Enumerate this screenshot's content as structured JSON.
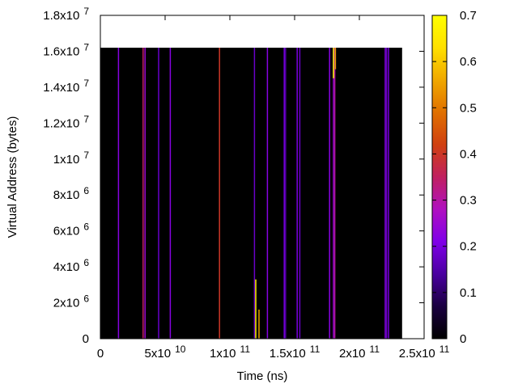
{
  "chart_data": {
    "type": "heatmap",
    "title": "",
    "xlabel": "Time (ns)",
    "ylabel": "Virtual Address (bytes)",
    "xlim": [
      0,
      250000000000.0
    ],
    "ylim": [
      0,
      18000000.0
    ],
    "x_ticks": [
      {
        "value": 0,
        "mant": "0",
        "exp": ""
      },
      {
        "value": 50000000000.0,
        "mant": "5x10",
        "exp": "10"
      },
      {
        "value": 100000000000.0,
        "mant": "1x10",
        "exp": "11"
      },
      {
        "value": 150000000000.0,
        "mant": "1.5x10",
        "exp": "11"
      },
      {
        "value": 200000000000.0,
        "mant": "2x10",
        "exp": "11"
      },
      {
        "value": 250000000000.0,
        "mant": "2.5x10",
        "exp": "11"
      }
    ],
    "y_ticks": [
      {
        "value": 0,
        "mant": "0",
        "exp": ""
      },
      {
        "value": 2000000.0,
        "mant": "2x10",
        "exp": "6"
      },
      {
        "value": 4000000.0,
        "mant": "4x10",
        "exp": "6"
      },
      {
        "value": 6000000.0,
        "mant": "6x10",
        "exp": "6"
      },
      {
        "value": 8000000.0,
        "mant": "8x10",
        "exp": "6"
      },
      {
        "value": 10000000.0,
        "mant": "1x10",
        "exp": "7"
      },
      {
        "value": 12000000.0,
        "mant": "1.2x10",
        "exp": "7"
      },
      {
        "value": 14000000.0,
        "mant": "1.4x10",
        "exp": "7"
      },
      {
        "value": 16000000.0,
        "mant": "1.6x10",
        "exp": "7"
      },
      {
        "value": 18000000.0,
        "mant": "1.8x10",
        "exp": "7"
      }
    ],
    "background_region": {
      "x0": 0,
      "x1": 233000000000.0,
      "y0": 0,
      "y1": 16200000.0,
      "value": 0
    },
    "events": [
      {
        "x": 14000000000.0,
        "y0": 0,
        "y1": 16200000.0,
        "value": 0.22
      },
      {
        "x": 33000000000.0,
        "y0": 0,
        "y1": 16200000.0,
        "value": 0.35
      },
      {
        "x": 34500000000.0,
        "y0": 0,
        "y1": 16200000.0,
        "value": 0.25
      },
      {
        "x": 45000000000.0,
        "y0": 0,
        "y1": 16200000.0,
        "value": 0.18
      },
      {
        "x": 54000000000.0,
        "y0": 0,
        "y1": 16200000.0,
        "value": 0.22
      },
      {
        "x": 92000000000.0,
        "y0": 0,
        "y1": 16200000.0,
        "value": 0.4
      },
      {
        "x": 119000000000.0,
        "y0": 0,
        "y1": 16200000.0,
        "value": 0.18
      },
      {
        "x": 120000000000.0,
        "y0": 0,
        "y1": 3300000.0,
        "value": 0.68
      },
      {
        "x": 122500000000.0,
        "y0": 0,
        "y1": 1620000.0,
        "value": 0.55
      },
      {
        "x": 129000000000.0,
        "y0": 0,
        "y1": 16200000.0,
        "value": 0.22
      },
      {
        "x": 142000000000.0,
        "y0": 0,
        "y1": 16200000.0,
        "value": 0.2
      },
      {
        "x": 143000000000.0,
        "y0": 0,
        "y1": 16200000.0,
        "value": 0.15
      },
      {
        "x": 152000000000.0,
        "y0": 0,
        "y1": 16200000.0,
        "value": 0.2
      },
      {
        "x": 154000000000.0,
        "y0": 0,
        "y1": 16200000.0,
        "value": 0.18
      },
      {
        "x": 177000000000.0,
        "y0": 0,
        "y1": 16200000.0,
        "value": 0.22
      },
      {
        "x": 180000000000.0,
        "y0": 0,
        "y1": 16200000.0,
        "value": 0.25
      },
      {
        "x": 181000000000.0,
        "y0": 0,
        "y1": 16200000.0,
        "value": 0.3
      },
      {
        "x": 180000000000.0,
        "y0": 14500000.0,
        "y1": 16200000.0,
        "value": 0.7
      },
      {
        "x": 181500000000.0,
        "y0": 15000000.0,
        "y1": 16200000.0,
        "value": 0.55
      },
      {
        "x": 220000000000.0,
        "y0": 0,
        "y1": 16200000.0,
        "value": 0.22
      },
      {
        "x": 221000000000.0,
        "y0": 0,
        "y1": 16200000.0,
        "value": 0.18
      },
      {
        "x": 222500000000.0,
        "y0": 0,
        "y1": 16200000.0,
        "value": 0.2
      }
    ],
    "colorbar": {
      "range": [
        0,
        0.7
      ],
      "ticks": [
        "0",
        "0.1",
        "0.2",
        "0.3",
        "0.4",
        "0.5",
        "0.6",
        "0.7"
      ],
      "palette": [
        "#000000",
        "#1a0040",
        "#4a00a0",
        "#8000e8",
        "#b010c0",
        "#c02060",
        "#d04010",
        "#e07000",
        "#f0a800",
        "#ffe000",
        "#ffff00"
      ]
    },
    "grid": false,
    "legend": "none"
  }
}
